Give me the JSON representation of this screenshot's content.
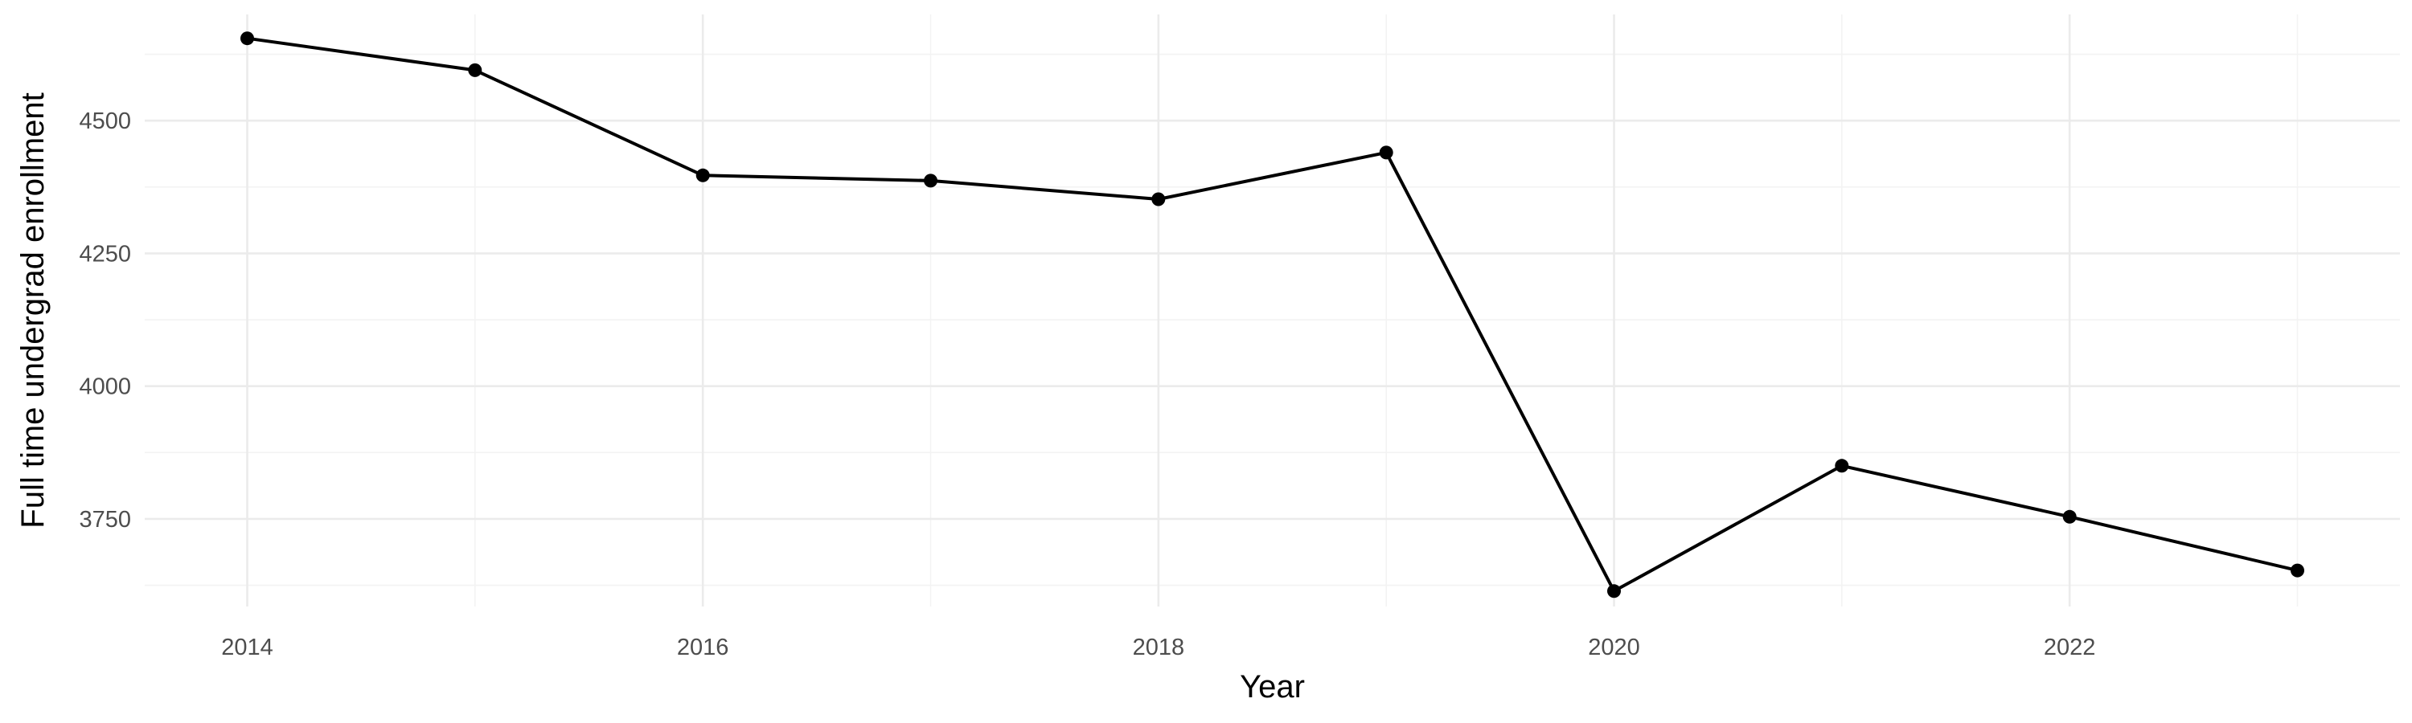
{
  "chart_data": {
    "type": "line",
    "title": "",
    "xlabel": "Year",
    "ylabel": "Full time undergrad enrollment",
    "x": [
      2014,
      2015,
      2016,
      2017,
      2018,
      2019,
      2020,
      2021,
      2022,
      2023
    ],
    "series": [
      {
        "values": [
          4655,
          4595,
          4397,
          4387,
          4352,
          4440,
          3614,
          3850,
          3754,
          3653
        ]
      }
    ],
    "xlim": [
      2013.55,
      2023.45
    ],
    "ylim": [
      3585,
      4700
    ],
    "x_ticks": [
      2014,
      2016,
      2018,
      2020,
      2022
    ],
    "x_tick_labels": [
      "2014",
      "2016",
      "2018",
      "2020",
      "2022"
    ],
    "x_minor_ticks": [
      2015,
      2017,
      2019,
      2021,
      2023
    ],
    "y_ticks": [
      3750,
      4000,
      4250,
      4500
    ],
    "y_tick_labels": [
      "3750",
      "4000",
      "4250",
      "4500"
    ],
    "y_minor_ticks": [
      3625,
      3875,
      4125,
      4375,
      4625
    ],
    "grid": true,
    "legend": "none",
    "colors": {
      "line": "#000000",
      "point": "#000000",
      "grid_major": "#ebebeb",
      "grid_minor": "#f3f3f3",
      "tick_text": "#4d4d4d",
      "axis_title": "#000000",
      "background": "#ffffff"
    }
  }
}
